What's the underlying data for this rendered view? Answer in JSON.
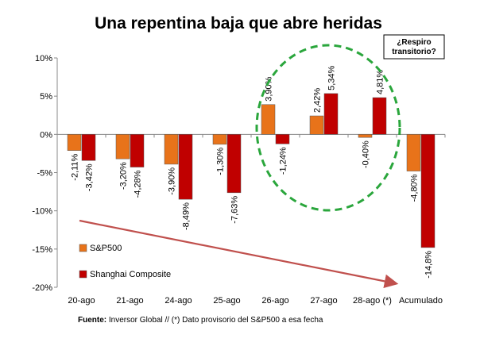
{
  "chart_data": {
    "type": "bar",
    "title": "Una repentina baja que abre heridas",
    "categories": [
      "20-ago",
      "21-ago",
      "24-ago",
      "25-ago",
      "26-ago",
      "27-ago",
      "28-ago (*)",
      "Acumulado"
    ],
    "series": [
      {
        "name": "S&P500",
        "color": "#E8731A",
        "values": [
          -2.11,
          -3.2,
          -3.9,
          -1.3,
          3.9,
          2.42,
          -0.4,
          -4.8
        ],
        "labels": [
          "-2,11%",
          "-3,20%",
          "-3,90%",
          "-1,30%",
          "3,90%",
          "2,42%",
          "-0,40%",
          "-4,80%"
        ]
      },
      {
        "name": "Shanghai Composite",
        "color": "#C00000",
        "values": [
          -3.42,
          -4.28,
          -8.49,
          -7.63,
          -1.24,
          5.34,
          4.81,
          -14.8
        ],
        "labels": [
          "-3,42%",
          "-4,28%",
          "-8,49%",
          "-7,63%",
          "-1,24%",
          "5,34%",
          "4,81%",
          "-14,8%"
        ]
      }
    ],
    "ylim": [
      -20,
      10
    ],
    "yticks": [
      10,
      5,
      0,
      -5,
      -10,
      -15,
      -20
    ],
    "ytick_labels": [
      "10%",
      "5%",
      "0%",
      "-5%",
      "-10%",
      "-15%",
      "-20%"
    ],
    "xlabel": "",
    "ylabel": "",
    "grid": false,
    "legend_position": "bottom-left",
    "callout": "¿Respiro transitorio?",
    "callout_lines": [
      "¿Respiro",
      "transitorio?"
    ]
  },
  "source": {
    "label": "Fuente:",
    "text": " Inversor Global  // (*) Dato provisorio  del S&P500 a esa fecha"
  }
}
